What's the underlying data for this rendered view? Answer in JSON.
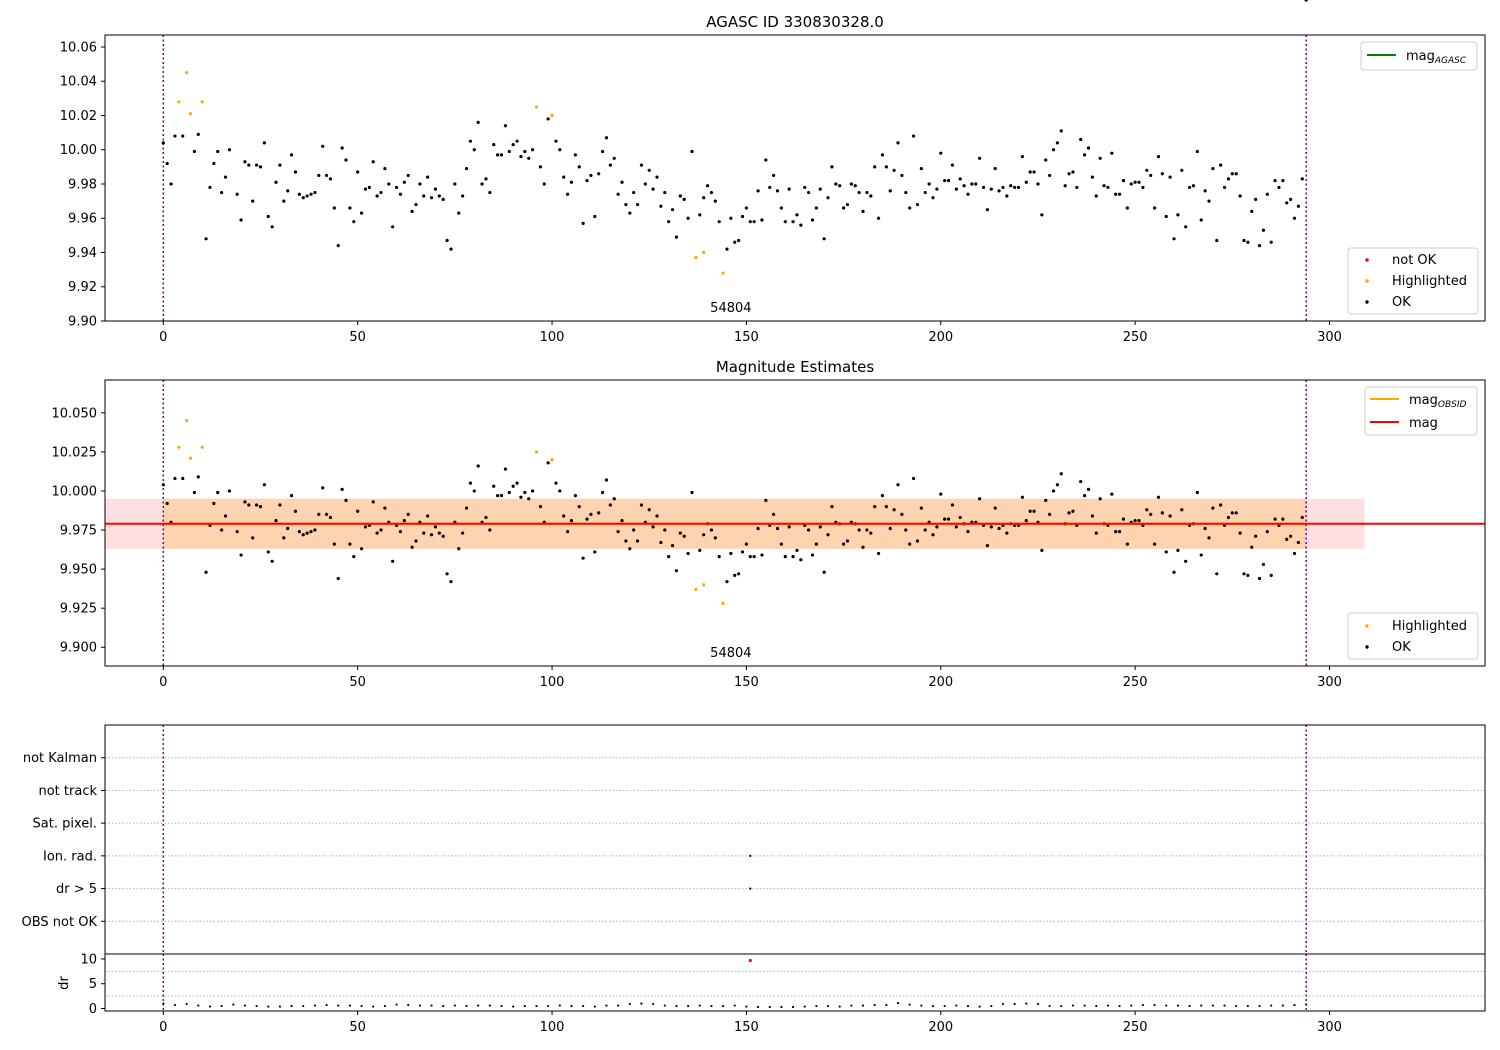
{
  "chart_data": [
    {
      "type": "scatter",
      "title": "AGASC ID 330830328.0",
      "xlabel": "",
      "ylabel": "",
      "xlim": [
        -15,
        340
      ],
      "ylim": [
        9.9,
        10.067
      ],
      "xticks": [
        0,
        50,
        100,
        150,
        200,
        250,
        300
      ],
      "yticks": [
        9.9,
        9.92,
        9.94,
        9.96,
        9.98,
        10.0,
        10.02,
        10.04,
        10.06
      ],
      "ytick_decimals": 2,
      "grid": false,
      "vlines": [
        0,
        294
      ],
      "annotation": "54804",
      "annotation_x": 146,
      "legend_line": {
        "label": "mag",
        "sub": "AGASC",
        "color": "#008000",
        "placement": "upper right"
      },
      "legend_points": {
        "placement": "lower right",
        "entries": [
          {
            "label": "not OK",
            "color": "#ff0000"
          },
          {
            "label": "Highlighted",
            "color": "#ffa500"
          },
          {
            "label": "OK",
            "color": "#000000"
          }
        ]
      },
      "series": [
        {
          "name": "OK",
          "color": "#000000",
          "source": "ok"
        },
        {
          "name": "Highlighted",
          "color": "#ffa500",
          "source": "highlighted"
        }
      ]
    },
    {
      "type": "scatter",
      "title": "Magnitude Estimates",
      "xlabel": "",
      "ylabel": "",
      "xlim": [
        -15,
        340
      ],
      "ylim": [
        9.888,
        10.071
      ],
      "xticks": [
        0,
        50,
        100,
        150,
        200,
        250,
        300
      ],
      "yticks": [
        9.9,
        9.925,
        9.95,
        9.975,
        10.0,
        10.025,
        10.05
      ],
      "ytick_decimals": 3,
      "grid": false,
      "vlines": [
        0,
        294
      ],
      "annotation": "54804",
      "annotation_x": 146,
      "mag": 9.979,
      "mag_band": [
        9.963,
        9.995
      ],
      "mag_band_x": [
        -15,
        309
      ],
      "mag_obsid": 9.979,
      "mag_obsid_band": [
        9.963,
        9.995
      ],
      "mag_obsid_x": [
        0,
        294
      ],
      "legend_line": {
        "placement": "upper right",
        "entries": [
          {
            "label": "mag",
            "sub": "OBSID",
            "color": "#ffa500"
          },
          {
            "label": "mag",
            "sub": "",
            "color": "#ff0000"
          }
        ]
      },
      "legend_points": {
        "placement": "lower right",
        "entries": [
          {
            "label": "Highlighted",
            "color": "#ffa500"
          },
          {
            "label": "OK",
            "color": "#000000"
          }
        ]
      },
      "series": [
        {
          "name": "OK",
          "color": "#000000",
          "source": "ok"
        },
        {
          "name": "Highlighted",
          "color": "#ffa500",
          "source": "highlighted"
        }
      ]
    },
    {
      "type": "scatter",
      "title": "",
      "xlabel": "",
      "ylabel": "",
      "xlim": [
        -15,
        340
      ],
      "categories": [
        "not Kalman",
        "not track",
        "Sat. pixel.",
        "Ion. rad.",
        "dr > 5",
        "OBS not OK"
      ],
      "grid": true,
      "vlines": [
        0,
        294
      ],
      "flags": [
        {
          "category": "Ion. rad.",
          "x": 151
        },
        {
          "category": "dr > 5",
          "x": 151
        }
      ]
    },
    {
      "type": "scatter",
      "title": "",
      "xlabel": "",
      "ylabel": "dr",
      "xlim": [
        -15,
        340
      ],
      "ylim": [
        -0.5,
        11
      ],
      "xticks": [
        0,
        50,
        100,
        150,
        200,
        250,
        300
      ],
      "yticks": [
        0,
        5,
        10
      ],
      "grid": true,
      "vlines": [
        0,
        294
      ],
      "outlier": {
        "x": 151,
        "y": 9.7,
        "color": "#ff0000"
      },
      "series": [
        {
          "name": "dr",
          "color": "#000000",
          "source": "dr"
        }
      ]
    }
  ],
  "mag_points": {
    "ok_x": [
      0,
      1,
      2,
      3,
      5,
      8,
      9,
      11,
      12,
      13,
      14,
      15,
      16,
      17,
      19,
      20,
      21,
      22,
      23,
      24,
      25,
      26,
      27,
      28,
      29,
      30,
      31,
      32,
      33,
      34,
      35,
      36,
      37,
      38,
      39,
      40,
      41,
      42,
      43,
      44,
      45,
      46,
      47,
      48,
      49,
      50,
      51,
      52,
      53,
      54,
      55,
      56,
      57,
      58,
      59,
      60,
      61,
      62,
      63,
      64,
      65,
      66,
      67,
      68,
      69,
      70,
      71,
      72,
      73,
      74,
      75,
      76,
      77,
      78,
      79,
      80,
      81,
      82,
      83,
      84,
      85,
      86,
      87,
      88,
      89,
      90,
      91,
      92,
      93,
      94,
      95,
      97,
      98,
      99,
      101,
      102,
      103,
      104,
      105,
      106,
      107,
      108,
      109,
      110,
      111,
      112,
      113,
      114,
      115,
      116,
      117,
      118,
      119,
      120,
      121,
      122,
      123,
      124,
      125,
      126,
      127,
      128,
      129,
      130,
      131,
      132,
      133,
      134,
      135,
      136,
      138,
      139,
      140,
      141,
      142,
      143,
      145,
      146,
      147,
      148,
      149,
      150,
      151,
      152,
      153,
      154,
      155,
      156,
      157,
      158,
      159,
      160,
      161,
      162,
      163,
      164,
      165,
      166,
      167,
      168,
      169,
      170,
      171,
      172,
      173,
      174,
      175,
      176,
      177,
      178,
      179,
      180,
      181,
      182,
      183,
      184,
      185,
      186,
      187,
      188,
      189,
      190,
      191,
      192,
      193,
      194,
      195,
      196,
      197,
      198,
      199,
      200,
      201,
      202,
      203,
      204,
      205,
      206,
      207,
      208,
      209,
      210,
      211,
      212,
      213,
      214,
      215,
      216,
      217,
      218,
      219,
      220,
      221,
      222,
      223,
      224,
      225,
      226,
      227,
      228,
      229,
      230,
      231,
      232,
      233,
      234,
      235,
      236,
      237,
      238,
      239,
      240,
      241,
      242,
      243,
      244,
      245,
      246,
      247,
      248,
      249,
      250,
      251,
      252,
      253,
      254,
      255,
      256,
      257,
      258,
      259,
      260,
      261,
      262,
      263,
      264,
      265,
      266,
      267,
      268,
      269,
      270,
      271,
      272,
      273,
      274,
      275,
      276,
      277,
      278,
      279,
      280,
      281,
      282,
      283,
      284,
      285,
      286,
      287,
      288,
      289,
      290,
      291,
      292,
      293,
      294
    ],
    "ok_y": [
      10.004,
      9.992,
      9.98,
      10.008,
      10.008,
      9.999,
      10.009,
      9.948,
      9.978,
      9.992,
      9.999,
      9.975,
      9.984,
      10.0,
      9.974,
      9.959,
      9.993,
      9.991,
      9.97,
      9.991,
      9.99,
      10.004,
      9.961,
      9.955,
      9.981,
      9.991,
      9.97,
      9.976,
      9.997,
      9.987,
      9.974,
      9.972,
      9.973,
      9.974,
      9.975,
      9.985,
      10.002,
      9.985,
      9.983,
      9.966,
      9.944,
      10.001,
      9.994,
      9.966,
      9.958,
      9.987,
      9.963,
      9.977,
      9.978,
      9.993,
      9.973,
      9.975,
      9.989,
      9.98,
      9.955,
      9.978,
      9.974,
      9.981,
      9.985,
      9.964,
      9.968,
      9.98,
      9.973,
      9.984,
      9.972,
      9.977,
      9.973,
      9.971,
      9.947,
      9.942,
      9.98,
      9.963,
      9.973,
      9.989,
      10.005,
      10.0,
      10.016,
      9.98,
      9.983,
      9.975,
      10.003,
      9.997,
      9.997,
      10.014,
      9.999,
      10.003,
      10.005,
      9.996,
      9.999,
      9.995,
      10.0,
      9.99,
      9.98,
      10.018,
      10.005,
      10.0,
      9.984,
      9.974,
      9.981,
      9.997,
      9.99,
      9.957,
      9.982,
      9.985,
      9.961,
      9.986,
      9.999,
      10.007,
      9.991,
      9.995,
      9.974,
      9.981,
      9.968,
      9.963,
      9.975,
      9.968,
      9.991,
      9.98,
      9.988,
      9.977,
      9.984,
      9.967,
      9.975,
      9.958,
      9.965,
      9.949,
      9.973,
      9.971,
      9.96,
      9.999,
      9.962,
      9.972,
      9.979,
      9.975,
      9.97,
      9.958,
      9.942,
      9.96,
      9.946,
      9.947,
      9.961,
      9.966,
      9.958,
      9.958,
      9.976,
      9.959,
      9.994,
      9.978,
      9.985,
      9.976,
      9.966,
      9.958,
      9.977,
      9.958,
      9.962,
      9.956,
      9.978,
      9.975,
      9.959,
      9.966,
      9.977,
      9.948,
      9.972,
      9.99,
      9.98,
      9.979,
      9.966,
      9.968,
      9.98,
      9.979,
      9.975,
      9.964,
      9.975,
      9.973,
      9.99,
      9.96,
      9.997,
      9.99,
      9.976,
      9.988,
      10.004,
      9.985,
      9.975,
      9.966,
      10.008,
      9.968,
      9.989,
      9.975,
      9.98,
      9.972,
      9.977,
      9.998,
      9.982,
      9.982,
      9.991,
      9.977,
      9.983,
      9.979,
      9.974,
      9.98,
      9.98,
      9.995,
      9.978,
      9.965,
      9.977,
      9.989,
      9.976,
      9.978,
      9.973,
      9.979,
      9.978,
      9.978,
      9.996,
      9.981,
      9.987,
      9.987,
      9.98,
      9.962,
      9.994,
      9.985,
      10.0,
      10.004,
      10.011,
      9.979,
      9.986,
      9.987,
      9.978,
      10.006,
      9.997,
      10.001,
      9.984,
      9.973,
      9.995,
      9.979,
      9.978,
      9.998,
      9.974,
      9.974,
      9.982,
      9.966,
      9.98,
      9.981,
      9.981,
      9.978,
      9.988,
      9.985,
      9.966,
      9.996,
      9.986,
      9.961,
      9.984,
      9.948,
      9.962,
      9.988,
      9.955,
      9.978,
      9.979,
      9.999,
      9.959,
      9.976,
      9.97,
      9.989,
      9.947,
      9.991,
      9.978,
      9.983,
      9.986,
      9.986,
      9.973,
      9.947,
      9.946,
      9.964,
      9.971,
      9.944,
      9.953,
      9.974,
      9.946,
      9.982,
      9.978,
      9.982,
      9.969,
      9.971,
      9.96,
      9.967,
      9.983
    ],
    "hl_x": [
      4,
      6,
      7,
      10,
      96,
      100,
      137,
      139,
      144
    ],
    "hl_y": [
      10.028,
      10.045,
      10.021,
      10.028,
      10.025,
      10.02,
      9.937,
      9.94,
      9.928
    ]
  },
  "dr_points": {
    "x": [
      0,
      3,
      6,
      9,
      12,
      15,
      18,
      21,
      24,
      27,
      30,
      33,
      36,
      39,
      42,
      45,
      48,
      51,
      54,
      57,
      60,
      63,
      66,
      69,
      72,
      75,
      78,
      81,
      84,
      87,
      90,
      93,
      96,
      99,
      102,
      105,
      108,
      111,
      114,
      117,
      120,
      123,
      126,
      129,
      132,
      135,
      138,
      141,
      144,
      147,
      150,
      153,
      156,
      159,
      162,
      165,
      168,
      171,
      174,
      177,
      180,
      183,
      186,
      189,
      192,
      195,
      198,
      201,
      204,
      207,
      210,
      213,
      216,
      219,
      222,
      225,
      228,
      231,
      234,
      237,
      240,
      243,
      246,
      249,
      252,
      255,
      258,
      261,
      264,
      267,
      270,
      273,
      276,
      279,
      282,
      285,
      288,
      291,
      294
    ],
    "y": [
      1.0,
      0.7,
      0.9,
      0.6,
      0.4,
      0.5,
      0.8,
      0.6,
      0.5,
      0.4,
      0.4,
      0.5,
      0.5,
      0.6,
      0.7,
      0.6,
      0.6,
      0.5,
      0.4,
      0.5,
      0.8,
      0.7,
      0.6,
      0.6,
      0.5,
      0.6,
      0.5,
      0.6,
      0.6,
      0.5,
      0.4,
      0.5,
      0.5,
      0.5,
      0.6,
      0.5,
      0.5,
      0.4,
      0.6,
      0.6,
      0.9,
      1.0,
      0.9,
      0.6,
      0.5,
      0.5,
      0.6,
      0.5,
      0.5,
      0.6,
      0.4,
      0.3,
      0.3,
      0.3,
      0.3,
      0.4,
      0.5,
      0.5,
      0.4,
      0.6,
      0.6,
      0.7,
      0.7,
      1.1,
      0.8,
      0.6,
      0.5,
      0.5,
      0.6,
      0.5,
      0.4,
      0.5,
      0.9,
      0.9,
      1.0,
      0.9,
      0.5,
      0.5,
      0.6,
      0.6,
      0.5,
      0.6,
      0.5,
      0.6,
      0.7,
      0.7,
      0.6,
      0.6,
      0.5,
      0.6,
      0.6,
      0.6,
      0.5,
      0.5,
      0.5,
      0.6,
      0.6,
      0.7,
      0.8
    ]
  }
}
